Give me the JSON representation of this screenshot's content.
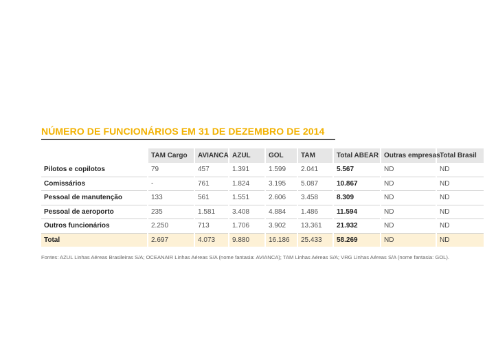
{
  "title": "NÚMERO DE FUNCIONÁRIOS EM 31 DE DEZEMBRO DE 2014",
  "colors": {
    "accent": "#f2b100",
    "header_bg": "#e6e6e6",
    "total_bg": "#fdf1d6"
  },
  "table": {
    "headers": [
      "TAM Cargo",
      "AVIANCA",
      "AZUL",
      "GOL",
      "TAM",
      "Total ABEAR",
      "Outras empresas",
      "Total Brasil"
    ],
    "rows": [
      {
        "label": "Pilotos e copilotos",
        "cells": [
          "79",
          "457",
          "1.391",
          "1.599",
          "2.041",
          "5.567",
          "ND",
          "ND"
        ]
      },
      {
        "label": "Comissários",
        "cells": [
          "-",
          "761",
          "1.824",
          "3.195",
          "5.087",
          "10.867",
          "ND",
          "ND"
        ]
      },
      {
        "label": "Pessoal de manutenção",
        "cells": [
          "133",
          "561",
          "1.551",
          "2.606",
          "3.458",
          "8.309",
          "ND",
          "ND"
        ]
      },
      {
        "label": "Pessoal de aeroporto",
        "cells": [
          "235",
          "1.581",
          "3.408",
          "4.884",
          "1.486",
          "11.594",
          "ND",
          "ND"
        ]
      },
      {
        "label": "Outros funcionários",
        "cells": [
          "2.250",
          "713",
          "1.706",
          "3.902",
          "13.361",
          "21.932",
          "ND",
          "ND"
        ]
      }
    ],
    "total": {
      "label": "Total",
      "cells": [
        "2.697",
        "4.073",
        "9.880",
        "16.186",
        "25.433",
        "58.269",
        "ND",
        "ND"
      ]
    }
  },
  "source": "Fontes: AZUL Linhas Aéreas Brasileiras S/A; OCEANAIR Linhas Aéreas S/A (nome fantasia: AVIANCA); TAM Linhas Aéreas S/A; VRG Linhas Aéreas S/A (nome fantasia: GOL)."
}
